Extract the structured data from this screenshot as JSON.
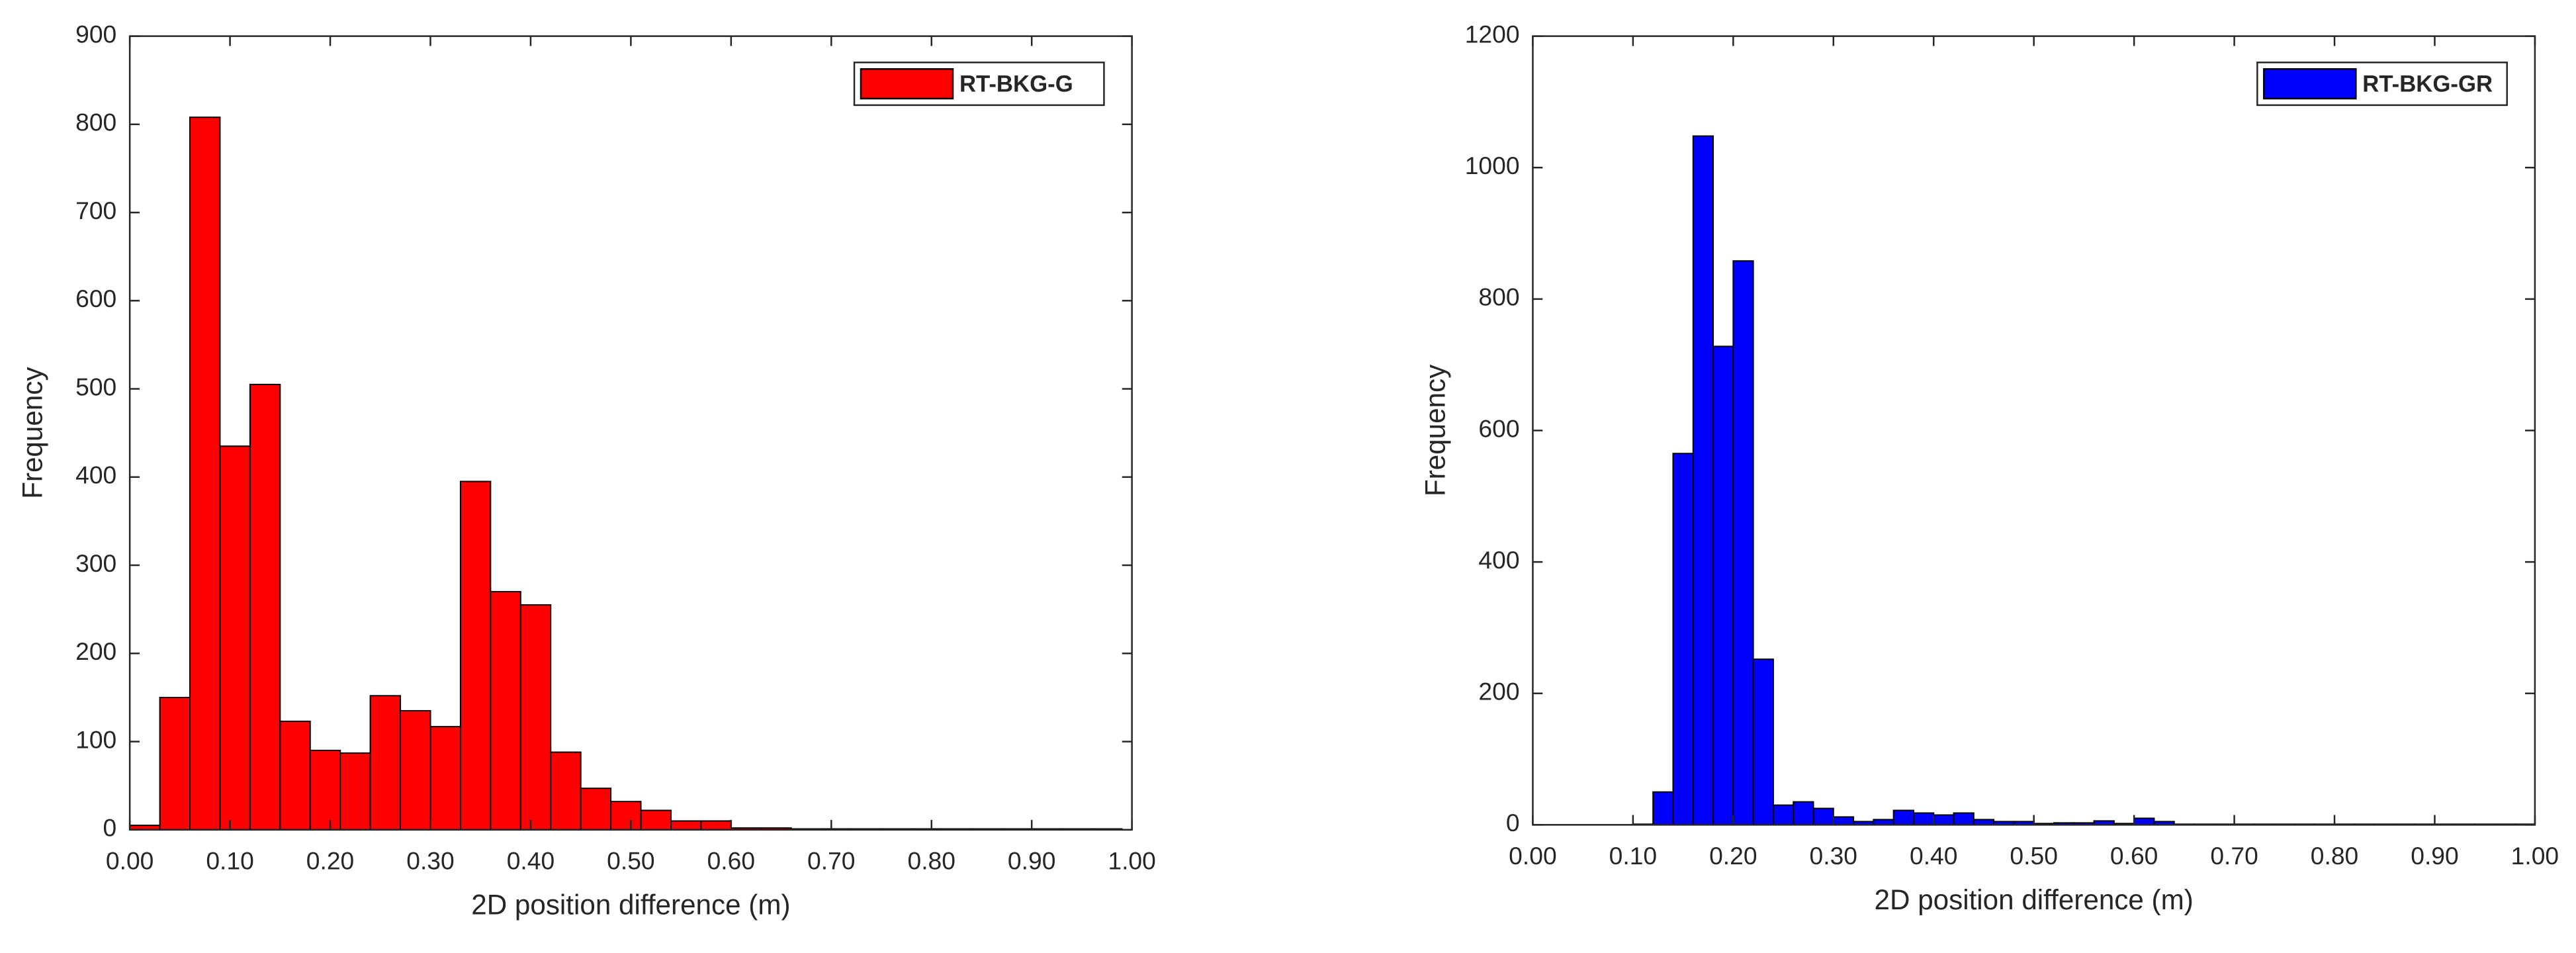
{
  "chart_data": [
    {
      "type": "histogram",
      "xlabel": "2D position difference (m)",
      "ylabel": "Frequency",
      "bins": [
        0,
        0.03,
        0.06,
        0.09,
        0.12,
        0.15,
        0.18,
        0.21,
        0.24,
        0.27,
        0.3,
        0.33,
        0.36,
        0.39,
        0.42,
        0.45,
        0.48,
        0.51,
        0.54,
        0.57,
        0.6,
        0.63,
        0.66,
        0.69,
        0.72,
        0.75,
        0.78,
        0.81,
        0.84,
        0.87,
        0.9,
        0.93,
        0.96,
        0.99
      ],
      "series": [
        {
          "name": "RT-BKG-G",
          "color": "#ff0000",
          "values": [
            5,
            150,
            808,
            435,
            505,
            123,
            90,
            87,
            152,
            135,
            117,
            395,
            270,
            255,
            88,
            47,
            32,
            22,
            10,
            10,
            2,
            2,
            1,
            1,
            1,
            1,
            1,
            1,
            1,
            1,
            1,
            1,
            1
          ]
        }
      ],
      "xlim": [
        0,
        1
      ],
      "ylim": [
        0,
        900
      ],
      "xticks": [
        {
          "value": 0,
          "label": "0.00"
        },
        {
          "value": 0.1,
          "label": "0.10"
        },
        {
          "value": 0.2,
          "label": "0.20"
        },
        {
          "value": 0.3,
          "label": "0.30"
        },
        {
          "value": 0.4,
          "label": "0.40"
        },
        {
          "value": 0.5,
          "label": "0.50"
        },
        {
          "value": 0.6,
          "label": "0.60"
        },
        {
          "value": 0.7,
          "label": "0.70"
        },
        {
          "value": 0.8,
          "label": "0.80"
        },
        {
          "value": 0.9,
          "label": "0.90"
        },
        {
          "value": 1,
          "label": "1.00"
        }
      ],
      "yticks": [
        0,
        100,
        200,
        300,
        400,
        500,
        600,
        700,
        800,
        900
      ],
      "legend": "upper right"
    },
    {
      "type": "histogram",
      "xlabel": "2D position difference (m)",
      "ylabel": "Frequency",
      "bins": [
        0.1,
        0.12,
        0.14,
        0.16,
        0.18,
        0.2,
        0.22,
        0.24,
        0.26,
        0.28,
        0.3,
        0.32,
        0.34,
        0.36,
        0.38,
        0.4,
        0.42,
        0.44,
        0.46,
        0.48,
        0.5,
        0.52,
        0.54,
        0.56,
        0.58,
        0.6,
        0.62,
        0.64,
        0.66,
        0.68,
        0.7,
        0.72,
        0.74,
        0.76,
        0.78,
        0.8,
        0.82,
        0.84,
        0.86,
        0.88,
        0.9,
        0.92,
        0.94,
        0.96,
        0.98,
        1
      ],
      "series": [
        {
          "name": "RT-BKG-GR",
          "color": "#0000ff",
          "values": [
            1,
            50,
            565,
            1048,
            728,
            858,
            252,
            30,
            35,
            25,
            12,
            5,
            8,
            22,
            18,
            15,
            18,
            8,
            5,
            5,
            2,
            3,
            3,
            6,
            2,
            10,
            5,
            1,
            1,
            1,
            1,
            1,
            1,
            1,
            1,
            1,
            1,
            1,
            1,
            1,
            1,
            1,
            1,
            1,
            1
          ]
        }
      ],
      "xlim": [
        0,
        1
      ],
      "ylim": [
        0,
        1200
      ],
      "xticks": [
        {
          "value": 0,
          "label": "0.00"
        },
        {
          "value": 0.1,
          "label": "0.10"
        },
        {
          "value": 0.2,
          "label": "0.20"
        },
        {
          "value": 0.3,
          "label": "0.30"
        },
        {
          "value": 0.4,
          "label": "0.40"
        },
        {
          "value": 0.5,
          "label": "0.50"
        },
        {
          "value": 0.6,
          "label": "0.60"
        },
        {
          "value": 0.7,
          "label": "0.70"
        },
        {
          "value": 0.8,
          "label": "0.80"
        },
        {
          "value": 0.9,
          "label": "0.90"
        },
        {
          "value": 1,
          "label": "1.00"
        }
      ],
      "yticks": [
        0,
        200,
        400,
        600,
        800,
        1000,
        1200
      ],
      "legend": "upper right"
    }
  ]
}
